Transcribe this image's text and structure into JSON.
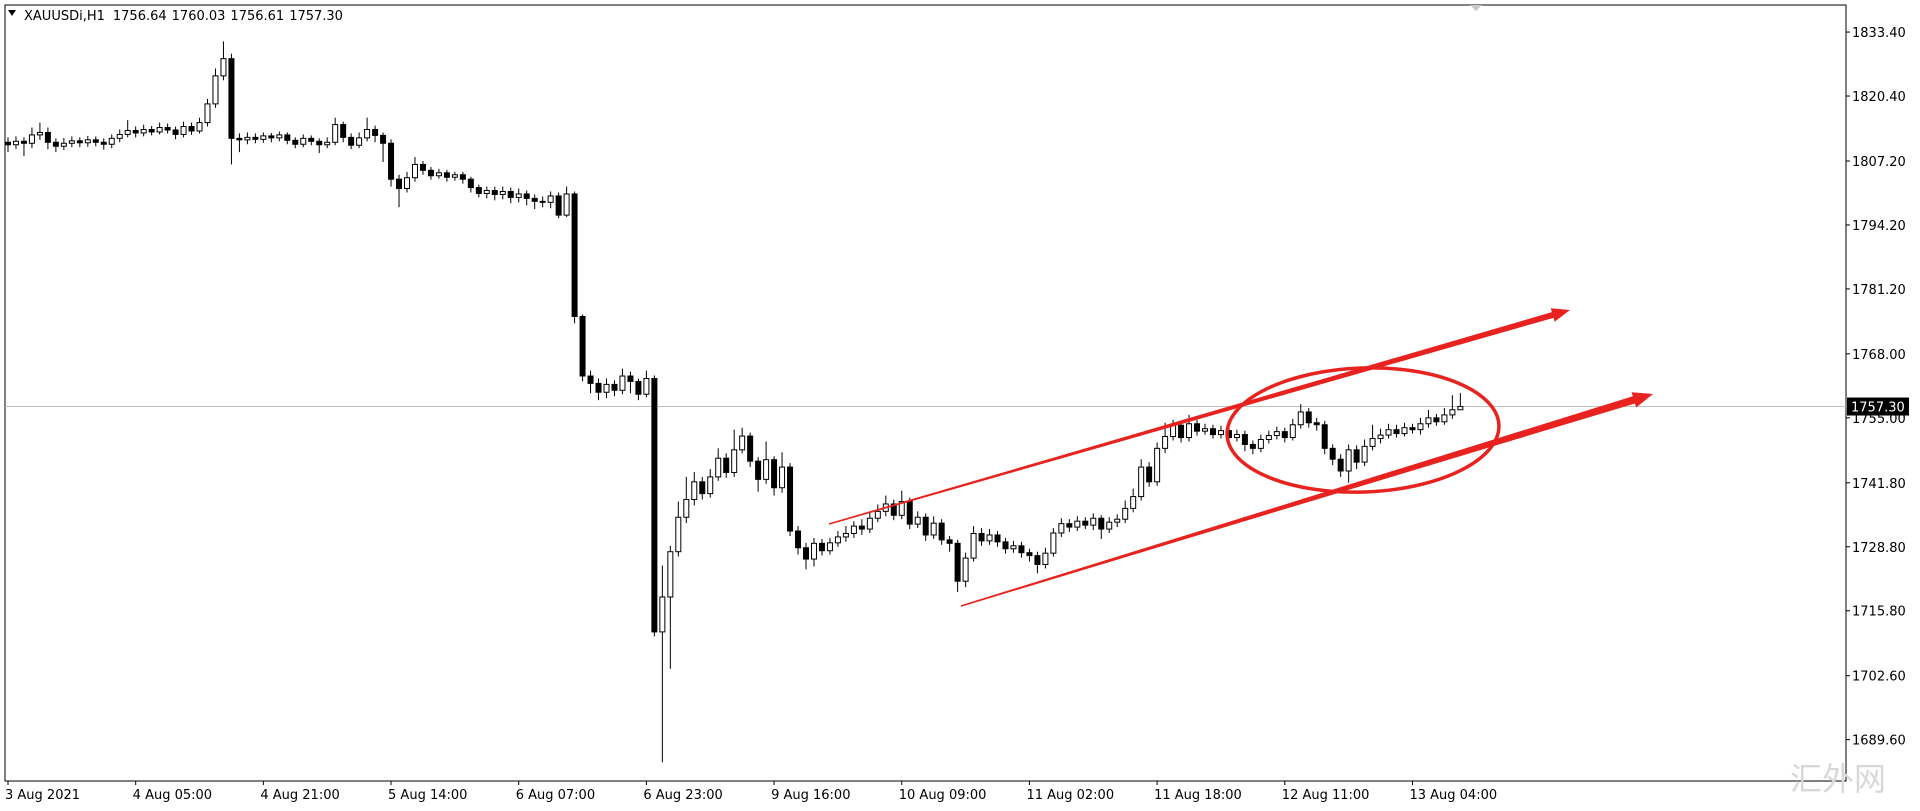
{
  "header": {
    "symbol": "XAUUSDi,H1",
    "values": [
      "1756.64",
      "1760.03",
      "1756.61",
      "1757.30"
    ]
  },
  "watermark": "汇外网",
  "chart_data": {
    "type": "candlestick",
    "categories": [
      "3 Aug 2021",
      null,
      null,
      null,
      null,
      null,
      null,
      null,
      null,
      null,
      null,
      null,
      null,
      null,
      null,
      null,
      "4 Aug 05:00",
      null,
      null,
      null,
      null,
      null,
      null,
      null,
      null,
      null,
      null,
      null,
      null,
      null,
      null,
      null,
      "4 Aug 21:00",
      null,
      null,
      null,
      null,
      null,
      null,
      null,
      null,
      null,
      null,
      null,
      null,
      null,
      null,
      null,
      "5 Aug 14:00",
      null,
      null,
      null,
      null,
      null,
      null,
      null,
      null,
      null,
      null,
      null,
      null,
      null,
      null,
      null,
      "6 Aug 07:00",
      null,
      null,
      null,
      null,
      null,
      null,
      null,
      null,
      null,
      null,
      null,
      null,
      null,
      null,
      null,
      "6 Aug 23:00",
      null,
      null,
      null,
      null,
      null,
      null,
      null,
      null,
      null,
      null,
      null,
      null,
      null,
      null,
      null,
      "9 Aug 16:00",
      null,
      null,
      null,
      null,
      null,
      null,
      null,
      null,
      null,
      null,
      null,
      null,
      null,
      null,
      null,
      "10 Aug 09:00",
      null,
      null,
      null,
      null,
      null,
      null,
      null,
      null,
      null,
      null,
      null,
      null,
      null,
      null,
      null,
      "11 Aug 02:00",
      null,
      null,
      null,
      null,
      null,
      null,
      null,
      null,
      null,
      null,
      null,
      null,
      null,
      null,
      null,
      "11 Aug 18:00",
      null,
      null,
      null,
      null,
      null,
      null,
      null,
      null,
      null,
      null,
      null,
      null,
      null,
      null,
      null,
      "12 Aug 11:00",
      null,
      null,
      null,
      null,
      null,
      null,
      null,
      null,
      null,
      null,
      null,
      null,
      null,
      null,
      null,
      "13 Aug 04:00",
      null,
      null,
      null,
      null,
      null,
      null
    ],
    "open": [
      1811.0,
      1810.5,
      1811.2,
      1810.8,
      1812.5,
      1813.0,
      1811.0,
      1810.2,
      1810.8,
      1811.3,
      1810.9,
      1811.5,
      1811.0,
      1810.6,
      1811.8,
      1812.6,
      1813.4,
      1812.9,
      1813.6,
      1813.1,
      1814.0,
      1813.5,
      1812.6,
      1814.2,
      1813.3,
      1815.0,
      1818.8,
      1824.5,
      1828.0,
      1811.8,
      1811.5,
      1812.0,
      1811.6,
      1812.3,
      1811.9,
      1812.5,
      1811.4,
      1810.6,
      1811.8,
      1811.2,
      1810.5,
      1811.0,
      1814.6,
      1812.0,
      1810.4,
      1811.9,
      1813.6,
      1812.4,
      1810.8,
      1803.5,
      1801.6,
      1803.8,
      1806.5,
      1805.3,
      1804.2,
      1804.8,
      1803.9,
      1804.4,
      1803.5,
      1801.8,
      1800.6,
      1801.2,
      1800.4,
      1801.0,
      1799.8,
      1800.5,
      1799.6,
      1799.0,
      1798.8,
      1800.1,
      1796.2,
      1800.5,
      1775.6,
      1763.5,
      1762.0,
      1760.2,
      1761.8,
      1760.6,
      1763.5,
      1762.4,
      1759.8,
      1763.0,
      1711.5,
      1718.6,
      1727.8,
      1734.8,
      1738.4,
      1742.0,
      1739.6,
      1743.0,
      1746.8,
      1743.9,
      1748.5,
      1751.3,
      1746.2,
      1742.5,
      1746.5,
      1740.8,
      1745.0,
      1732.0,
      1728.6,
      1726.3,
      1729.5,
      1728.0,
      1729.6,
      1730.8,
      1731.5,
      1733.0,
      1732.4,
      1734.6,
      1736.0,
      1737.5,
      1735.2,
      1738.0,
      1733.4,
      1734.8,
      1731.2,
      1733.6,
      1730.2,
      1729.5,
      1721.8,
      1726.5,
      1731.5,
      1730.0,
      1731.2,
      1729.8,
      1728.4,
      1729.0,
      1727.6,
      1727.0,
      1725.2,
      1727.5,
      1731.6,
      1733.5,
      1732.8,
      1734.0,
      1733.2,
      1734.6,
      1732.4,
      1733.8,
      1734.4,
      1736.6,
      1739.0,
      1745.0,
      1742.0,
      1748.8,
      1751.2,
      1753.5,
      1751.0,
      1753.8,
      1752.3,
      1752.8,
      1751.6,
      1752.4,
      1751.0,
      1751.6,
      1749.6,
      1748.8,
      1750.6,
      1751.4,
      1752.2,
      1751.0,
      1753.6,
      1756.2,
      1754.0,
      1753.6,
      1748.8,
      1746.6,
      1744.2,
      1748.5,
      1746.0,
      1749.2,
      1750.8,
      1751.5,
      1752.6,
      1751.8,
      1753.0,
      1752.6,
      1753.8,
      1755.0,
      1754.2,
      1755.6,
      1756.64
    ],
    "high": [
      1812.0,
      1812.2,
      1812.0,
      1814.0,
      1815.0,
      1814.0,
      1811.8,
      1811.9,
      1812.2,
      1812.0,
      1812.3,
      1812.2,
      1811.8,
      1812.6,
      1813.6,
      1815.5,
      1814.2,
      1814.6,
      1814.3,
      1815.0,
      1814.8,
      1814.2,
      1815.2,
      1815.0,
      1816.0,
      1819.8,
      1826.0,
      1831.5,
      1829.0,
      1812.8,
      1813.0,
      1812.8,
      1813.0,
      1812.9,
      1813.2,
      1813.0,
      1812.0,
      1812.6,
      1812.4,
      1811.8,
      1812.0,
      1816.0,
      1815.2,
      1812.8,
      1813.0,
      1816.0,
      1814.4,
      1813.0,
      1811.6,
      1804.4,
      1805.0,
      1808.0,
      1807.2,
      1806.0,
      1805.6,
      1805.4,
      1805.0,
      1805.0,
      1804.0,
      1802.4,
      1802.0,
      1802.0,
      1802.0,
      1801.8,
      1801.6,
      1801.2,
      1800.4,
      1800.0,
      1801.0,
      1800.8,
      1802.0,
      1801.0,
      1776.0,
      1764.6,
      1763.0,
      1763.0,
      1762.6,
      1765.0,
      1764.4,
      1763.0,
      1764.6,
      1763.6,
      1725.0,
      1729.0,
      1738.0,
      1743.0,
      1744.0,
      1743.0,
      1744.6,
      1748.8,
      1747.8,
      1752.6,
      1753.0,
      1752.0,
      1747.0,
      1750.2,
      1747.2,
      1748.0,
      1745.8,
      1733.0,
      1729.6,
      1730.6,
      1730.4,
      1730.6,
      1732.0,
      1733.0,
      1734.0,
      1734.4,
      1736.0,
      1737.4,
      1739.2,
      1738.4,
      1740.2,
      1738.8,
      1736.0,
      1735.6,
      1735.0,
      1734.4,
      1731.0,
      1730.2,
      1727.6,
      1733.0,
      1732.6,
      1732.4,
      1732.0,
      1730.6,
      1730.0,
      1729.8,
      1728.4,
      1727.8,
      1728.6,
      1732.6,
      1734.6,
      1734.4,
      1735.0,
      1734.8,
      1735.6,
      1735.2,
      1734.8,
      1735.4,
      1738.2,
      1740.6,
      1746.6,
      1746.0,
      1750.0,
      1754.0,
      1754.6,
      1754.2,
      1755.6,
      1754.6,
      1753.8,
      1753.6,
      1753.4,
      1753.0,
      1752.6,
      1752.4,
      1750.4,
      1751.6,
      1752.4,
      1753.2,
      1753.0,
      1754.8,
      1757.8,
      1757.0,
      1755.0,
      1754.4,
      1749.6,
      1747.6,
      1749.6,
      1749.4,
      1750.6,
      1753.6,
      1752.8,
      1753.8,
      1753.6,
      1754.0,
      1753.8,
      1755.0,
      1756.6,
      1755.8,
      1757.0,
      1759.6,
      1760.03
    ],
    "low": [
      1809.0,
      1809.6,
      1808.2,
      1809.8,
      1811.5,
      1809.6,
      1809.0,
      1809.4,
      1810.0,
      1810.0,
      1810.1,
      1810.2,
      1809.5,
      1809.8,
      1811.0,
      1812.0,
      1812.0,
      1812.2,
      1812.4,
      1812.6,
      1812.8,
      1811.6,
      1812.0,
      1812.5,
      1812.8,
      1814.2,
      1818.0,
      1823.6,
      1806.5,
      1809.0,
      1810.6,
      1810.8,
      1810.9,
      1811.0,
      1811.2,
      1810.6,
      1809.8,
      1810.0,
      1810.4,
      1808.8,
      1809.8,
      1810.4,
      1811.0,
      1809.6,
      1809.8,
      1811.2,
      1811.0,
      1807.0,
      1802.0,
      1797.8,
      1800.8,
      1803.0,
      1804.4,
      1803.4,
      1803.6,
      1803.0,
      1803.2,
      1802.6,
      1800.8,
      1799.8,
      1799.6,
      1799.2,
      1799.4,
      1798.6,
      1798.8,
      1798.2,
      1797.4,
      1797.8,
      1797.6,
      1795.6,
      1795.8,
      1774.2,
      1762.4,
      1760.0,
      1758.6,
      1759.0,
      1759.4,
      1759.8,
      1760.0,
      1758.6,
      1759.2,
      1710.6,
      1685.0,
      1704.0,
      1726.8,
      1733.6,
      1737.2,
      1738.4,
      1738.8,
      1742.2,
      1742.8,
      1743.0,
      1747.8,
      1745.0,
      1740.0,
      1741.6,
      1739.2,
      1739.8,
      1731.0,
      1727.2,
      1724.2,
      1724.8,
      1727.0,
      1727.2,
      1728.8,
      1729.8,
      1730.6,
      1731.2,
      1731.6,
      1733.8,
      1735.0,
      1734.2,
      1734.4,
      1732.4,
      1732.6,
      1730.0,
      1730.4,
      1729.2,
      1727.8,
      1719.6,
      1720.6,
      1725.8,
      1729.0,
      1729.2,
      1728.8,
      1727.4,
      1727.6,
      1726.6,
      1725.8,
      1723.4,
      1724.4,
      1726.8,
      1730.8,
      1731.8,
      1732.0,
      1732.4,
      1732.2,
      1730.4,
      1731.6,
      1732.8,
      1733.6,
      1735.8,
      1738.2,
      1741.0,
      1741.2,
      1747.8,
      1750.4,
      1750.0,
      1750.2,
      1751.4,
      1751.6,
      1750.8,
      1750.8,
      1750.2,
      1750.2,
      1748.2,
      1747.6,
      1748.0,
      1749.8,
      1750.6,
      1750.0,
      1750.4,
      1752.8,
      1753.0,
      1752.4,
      1747.6,
      1745.4,
      1743.0,
      1741.8,
      1744.6,
      1745.2,
      1748.4,
      1749.8,
      1750.8,
      1751.0,
      1751.2,
      1751.8,
      1751.6,
      1753.0,
      1753.4,
      1753.6,
      1754.8,
      1756.61
    ],
    "close": [
      1810.5,
      1811.2,
      1810.8,
      1812.5,
      1813.0,
      1811.0,
      1810.2,
      1810.8,
      1811.3,
      1810.9,
      1811.5,
      1811.0,
      1810.6,
      1811.8,
      1812.6,
      1813.4,
      1812.9,
      1813.6,
      1813.1,
      1814.0,
      1813.5,
      1812.6,
      1814.2,
      1813.3,
      1815.0,
      1818.8,
      1824.5,
      1828.0,
      1811.8,
      1811.5,
      1812.0,
      1811.6,
      1812.3,
      1811.9,
      1812.5,
      1811.4,
      1810.6,
      1811.8,
      1811.2,
      1810.5,
      1811.0,
      1814.6,
      1812.0,
      1810.4,
      1811.9,
      1813.6,
      1812.4,
      1810.8,
      1803.5,
      1801.6,
      1803.8,
      1806.5,
      1805.3,
      1804.2,
      1804.8,
      1803.9,
      1804.4,
      1803.5,
      1801.8,
      1800.6,
      1801.2,
      1800.4,
      1801.0,
      1799.8,
      1800.5,
      1799.6,
      1799.0,
      1798.8,
      1800.1,
      1796.2,
      1800.5,
      1775.6,
      1763.5,
      1762.0,
      1760.2,
      1761.8,
      1760.6,
      1763.5,
      1762.4,
      1759.8,
      1763.0,
      1711.5,
      1718.6,
      1727.8,
      1734.8,
      1738.4,
      1742.0,
      1739.6,
      1743.0,
      1746.8,
      1743.9,
      1748.5,
      1751.3,
      1746.2,
      1742.5,
      1746.5,
      1740.8,
      1745.0,
      1732.0,
      1728.6,
      1726.3,
      1729.5,
      1728.0,
      1729.6,
      1730.8,
      1731.5,
      1733.0,
      1732.4,
      1734.6,
      1736.0,
      1737.5,
      1735.2,
      1738.0,
      1733.4,
      1734.8,
      1731.2,
      1733.6,
      1730.2,
      1729.5,
      1721.8,
      1726.5,
      1731.5,
      1730.0,
      1731.2,
      1729.8,
      1728.4,
      1729.0,
      1727.6,
      1727.0,
      1725.2,
      1727.5,
      1731.6,
      1733.5,
      1732.8,
      1734.0,
      1733.2,
      1734.6,
      1732.4,
      1733.8,
      1734.4,
      1736.6,
      1739.0,
      1745.0,
      1742.0,
      1748.8,
      1751.2,
      1753.5,
      1751.0,
      1753.8,
      1752.3,
      1752.8,
      1751.6,
      1752.4,
      1751.0,
      1751.6,
      1749.6,
      1748.8,
      1750.6,
      1751.4,
      1752.2,
      1751.0,
      1753.6,
      1756.2,
      1754.0,
      1753.6,
      1748.8,
      1746.6,
      1744.2,
      1748.5,
      1746.0,
      1749.2,
      1750.8,
      1751.5,
      1752.6,
      1751.8,
      1753.0,
      1752.6,
      1753.8,
      1755.0,
      1754.2,
      1755.6,
      1756.64,
      1757.3
    ],
    "up_color": "#ffffff",
    "down_color": "#000000",
    "outline_color": "#000000",
    "price_line_color": "#c0c0c0",
    "ylim": [
      1681.2,
      1838.9
    ],
    "yticks": [
      {
        "value": 1833.4,
        "label": "1833.40"
      },
      {
        "value": 1820.4,
        "label": "1820.40"
      },
      {
        "value": 1807.2,
        "label": "1807.20"
      },
      {
        "value": 1794.2,
        "label": "1794.20"
      },
      {
        "value": 1781.2,
        "label": "1781.20"
      },
      {
        "value": 1768.0,
        "label": "1768.00"
      },
      {
        "value": 1755.0,
        "label": "1755.00"
      },
      {
        "value": 1741.8,
        "label": "1741.80"
      },
      {
        "value": 1728.8,
        "label": "1728.80"
      },
      {
        "value": 1715.8,
        "label": "1715.80"
      },
      {
        "value": 1702.6,
        "label": "1702.60"
      },
      {
        "value": 1689.6,
        "label": "1689.60"
      }
    ],
    "grid": false
  }
}
